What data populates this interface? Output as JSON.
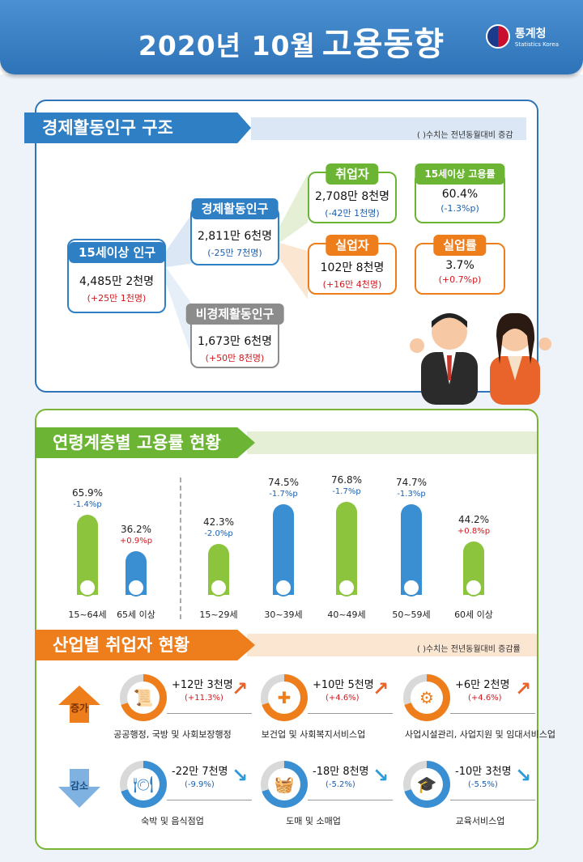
{
  "header": {
    "year_month": "2020년  10월",
    "title": "고용동향",
    "logo_korean": "통계청",
    "logo_english": "Statistics Korea"
  },
  "structure": {
    "title": "경제활동인구 구조",
    "note": "(  )수치는 전년동월대비 증감",
    "pop15": {
      "label": "15세이상 인구",
      "value": "4,485만 2천명",
      "change": "(+25만 1천명)"
    },
    "active": {
      "label": "경제활동인구",
      "value": "2,811만 6천명",
      "change": "(-25만 7천명)"
    },
    "inactive": {
      "label": "비경제활동인구",
      "value": "1,673만 6천명",
      "change": "(+50만 8천명)"
    },
    "employed": {
      "label": "취업자",
      "value": "2,708만 8천명",
      "change": "(-42만 1천명)"
    },
    "unemployed": {
      "label": "실업자",
      "value": "102만 8천명",
      "change": "(+16만 4천명)"
    },
    "emp_rate": {
      "label": "15세이상 고용률",
      "value": "60.4%",
      "change": "(-1.3%p)"
    },
    "unemp_rate": {
      "label": "실업률",
      "value": "3.7%",
      "change": "(+0.7%p)"
    }
  },
  "age": {
    "title": "연령계층별 고용률 현황",
    "bars": [
      {
        "label": "15~64세",
        "value": "65.9%",
        "change": "-1.4%p",
        "color": "#8cc43e",
        "pct": 65.9
      },
      {
        "label": "65세 이상",
        "value": "36.2%",
        "change": "+0.9%p",
        "color": "#3a8fd3",
        "pct": 36.2
      },
      {
        "label": "15~29세",
        "value": "42.3%",
        "change": "-2.0%p",
        "color": "#8cc43e",
        "pct": 42.3
      },
      {
        "label": "30~39세",
        "value": "74.5%",
        "change": "-1.7%p",
        "color": "#3a8fd3",
        "pct": 74.5
      },
      {
        "label": "40~49세",
        "value": "76.8%",
        "change": "-1.7%p",
        "color": "#8cc43e",
        "pct": 76.8
      },
      {
        "label": "50~59세",
        "value": "74.7%",
        "change": "-1.3%p",
        "color": "#3a8fd3",
        "pct": 74.7
      },
      {
        "label": "60세 이상",
        "value": "44.2%",
        "change": "+0.8%p",
        "color": "#8cc43e",
        "pct": 44.2
      }
    ]
  },
  "industry": {
    "title": "산업별 취업자 현황",
    "note": "(  )수치는 전년동월대비 증감률",
    "increase_label": "증가",
    "decrease_label": "감소",
    "increase": [
      {
        "name": "공공행정, 국방 및 사회보장행정",
        "value": "+12만 3천명",
        "change": "(+11.3%)",
        "icon": "📜"
      },
      {
        "name": "보건업 및 사회복지서비스업",
        "value": "+10만 5천명",
        "change": "(+4.6%)",
        "icon": "✚"
      },
      {
        "name": "사업시설관리, 사업지원 및 임대서비스업",
        "value": "+6만 2천명",
        "change": "(+4.6%)",
        "icon": "⚙"
      }
    ],
    "decrease": [
      {
        "name": "숙박 및 음식점업",
        "value": "-22만 7천명",
        "change": "(-9.9%)",
        "icon": "🍽"
      },
      {
        "name": "도매 및 소매업",
        "value": "-18만 8천명",
        "change": "(-5.2%)",
        "icon": "🧺"
      },
      {
        "name": "교육서비스업",
        "value": "-10만 3천명",
        "change": "(-5.5%)",
        "icon": "🎓"
      }
    ]
  },
  "colors": {
    "blue": "#2f7fc4",
    "green": "#6cb534",
    "orange": "#ee7d1c",
    "gray": "#8c8c8c"
  }
}
